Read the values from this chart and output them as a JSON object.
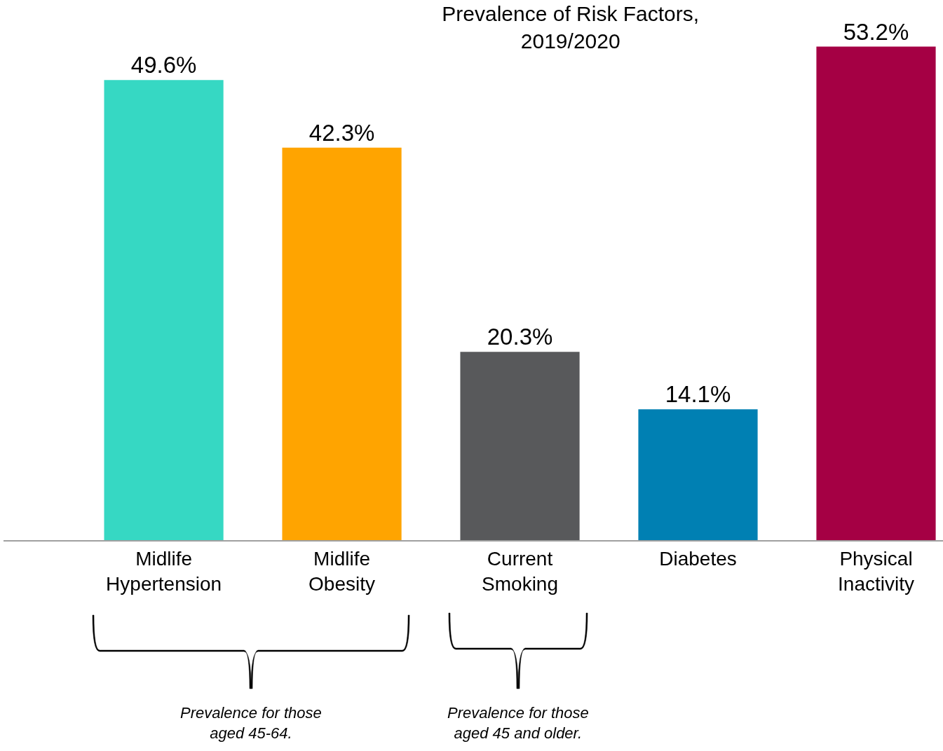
{
  "chart_data": {
    "type": "bar",
    "title": "Prevalence of Risk Factors,\n2019/2020",
    "categories": [
      "Midlife Hypertension",
      "Midlife Obesity",
      "Current Smoking",
      "Diabetes",
      "Physical Inactivity"
    ],
    "values": [
      49.6,
      42.3,
      20.3,
      14.1,
      53.2
    ],
    "colors": [
      "#36d8c3",
      "#ffa400",
      "#58595b",
      "#0080b3",
      "#a50044"
    ],
    "value_labels": [
      "49.6%",
      "42.3%",
      "20.3%",
      "14.1%",
      "53.2%"
    ],
    "tick_labels": "x",
    "annotations": [
      "Prevalence for those\naged 45-64.",
      "Prevalence for those\naged 45 and older."
    ]
  }
}
